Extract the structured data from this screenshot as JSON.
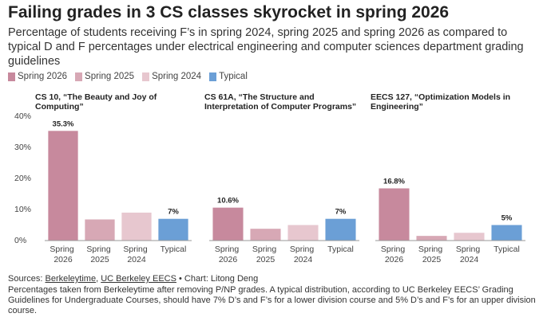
{
  "title": "Failing grades in 3 CS classes skyrocket in spring 2026",
  "subtitle": "Percentage of students receiving F’s in spring 2024, spring 2025 and spring 2026 as compared to typical D and F percentages under electrical engineering and computer sciences department grading guidelines",
  "sources": {
    "prefix": "Sources:",
    "links": [
      "Berkeleytime",
      "UC Berkeley EECS"
    ],
    "separator": ",",
    "credit": "• Chart: Litong Deng"
  },
  "note": "Percentages taken from Berkeleytime after removing P/NP grades. A typical distribution, according to UC Berkeley EECS’ Grading Guidelines for Undergraduate Courses, should have 7% D’s and F’s for a lower division course and 5% D’s and F’s for an upper division course.",
  "chart_data": [
    {
      "type": "bar",
      "title": "CS 10, “The Beauty and Joy of Computing”",
      "categories": [
        "Spring 2026",
        "Spring 2025",
        "Spring 2024",
        "Typical"
      ],
      "colors": [
        "#c7899d",
        "#d7a8b5",
        "#e7c7cf",
        "#6b9fd6"
      ],
      "values": [
        35.3,
        6.8,
        9,
        7
      ],
      "value_labels": [
        "35.3%",
        null,
        null,
        "7%"
      ],
      "ylim": [
        0,
        40
      ],
      "yticks": [
        {
          "value": 0,
          "label": "0%"
        },
        {
          "value": 10,
          "label": "10%"
        },
        {
          "value": 20,
          "label": "20%"
        },
        {
          "value": 30,
          "label": "30%"
        },
        {
          "value": 40,
          "label": "40%"
        }
      ]
    },
    {
      "type": "bar",
      "title": "CS 61A, “The Structure and Interpretation of Computer Programs”",
      "categories": [
        "Spring 2026",
        "Spring 2025",
        "Spring 2024",
        "Typical"
      ],
      "colors": [
        "#c7899d",
        "#d7a8b5",
        "#e7c7cf",
        "#6b9fd6"
      ],
      "values": [
        10.6,
        3.8,
        5,
        7
      ],
      "value_labels": [
        "10.6%",
        null,
        null,
        "7%"
      ],
      "ylim": [
        0,
        40
      ]
    },
    {
      "type": "bar",
      "title": "EECS 127, “Optimization Models in Engineering”",
      "categories": [
        "Spring 2026",
        "Spring 2025",
        "Spring 2024",
        "Typical"
      ],
      "colors": [
        "#c7899d",
        "#d7a8b5",
        "#e7c7cf",
        "#6b9fd6"
      ],
      "values": [
        16.8,
        1.5,
        2.5,
        5
      ],
      "value_labels": [
        "16.8%",
        null,
        null,
        "5%"
      ],
      "ylim": [
        0,
        40
      ]
    }
  ]
}
